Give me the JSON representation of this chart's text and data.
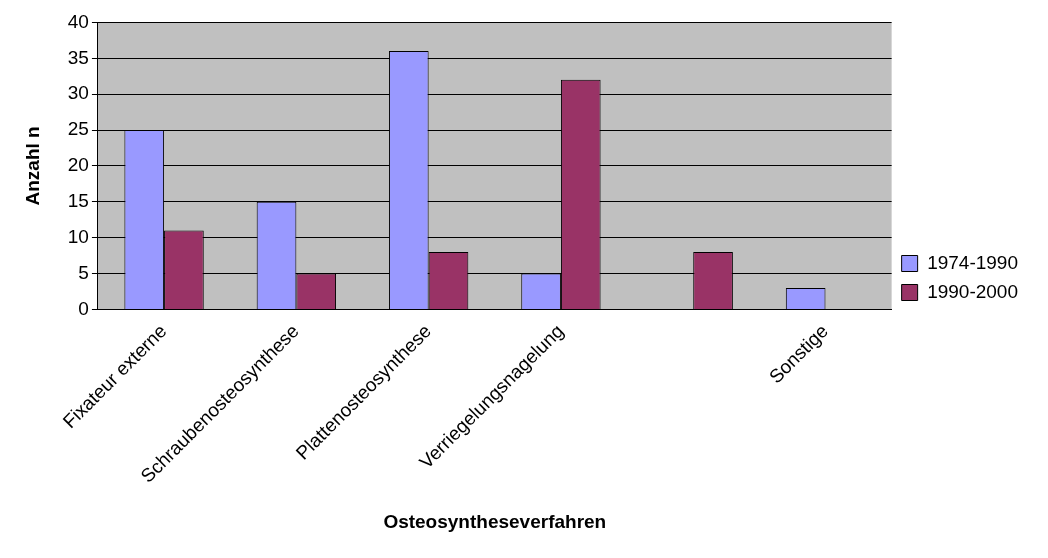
{
  "chart_data": {
    "type": "bar",
    "xlabel": "Osteosyntheseverfahren",
    "ylabel": "Anzahl n",
    "categories": [
      "Fixateur externe",
      "Schraubenosteosynthese",
      "Plattenosteosynthese",
      "Verriegelungsnagelung",
      null,
      "Sonstige"
    ],
    "series": [
      {
        "name": "1974-1990",
        "color": "#9999ff",
        "values": [
          25,
          15,
          36,
          5,
          0,
          3
        ]
      },
      {
        "name": "1990-2000",
        "color": "#993366",
        "values": [
          11,
          5,
          8,
          32,
          8,
          0
        ]
      }
    ],
    "ylim": [
      0,
      40
    ],
    "yticks": [
      0,
      5,
      10,
      15,
      20,
      25,
      30,
      35,
      40
    ],
    "grid": "y",
    "legend": "right"
  }
}
